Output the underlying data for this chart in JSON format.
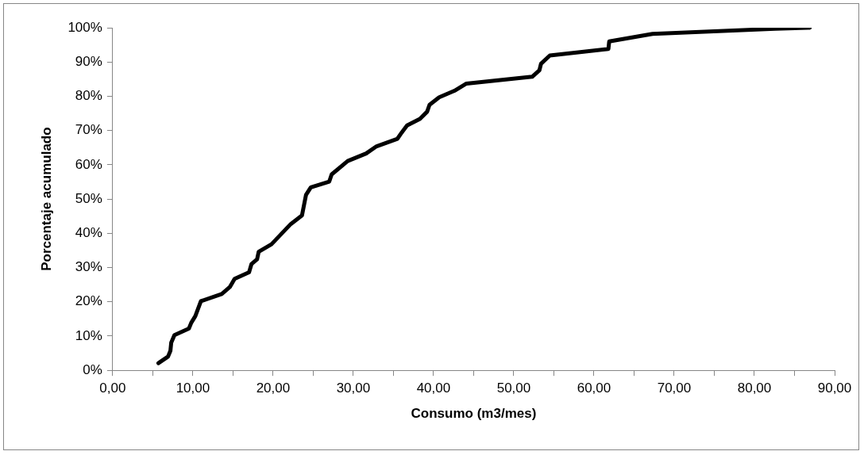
{
  "chart_data": {
    "type": "line",
    "xlabel": "Consumo (m3/mes)",
    "ylabel": "Porcentaje acumulado",
    "x": [
      5.7,
      6.9,
      7.2,
      7.3,
      7.7,
      9.5,
      9.8,
      10.3,
      11.0,
      13.6,
      14.6,
      15.2,
      17.0,
      17.3,
      18.0,
      18.2,
      19.8,
      22.2,
      23.6,
      24.1,
      24.7,
      27.0,
      27.3,
      29.3,
      31.6,
      32.9,
      35.5,
      36.0,
      36.7,
      38.3,
      39.2,
      39.5,
      40.7,
      42.6,
      44.1,
      52.3,
      53.2,
      53.4,
      54.5,
      61.8,
      61.9,
      67.3,
      82.6,
      86.9
    ],
    "series": [
      {
        "color": "#000000",
        "values": [
          2.1,
          4.0,
          5.7,
          8.1,
          10.3,
          12.2,
          13.9,
          15.8,
          20.2,
          22.3,
          24.3,
          26.7,
          28.6,
          31.0,
          32.4,
          34.6,
          36.8,
          42.7,
          45.2,
          51.2,
          53.4,
          55.1,
          57.2,
          61.1,
          63.3,
          65.4,
          67.6,
          69.3,
          71.5,
          73.4,
          75.5,
          77.5,
          79.7,
          81.6,
          83.7,
          85.7,
          87.6,
          89.5,
          91.9,
          93.8,
          96.0,
          98.2,
          99.7,
          100.0
        ]
      }
    ],
    "xlim": [
      0,
      90
    ],
    "xticks": [
      {
        "value": 0,
        "label": "0,00"
      },
      {
        "value": 5,
        "label": null
      },
      {
        "value": 10,
        "label": "10,00"
      },
      {
        "value": 15,
        "label": null
      },
      {
        "value": 20,
        "label": "20,00"
      },
      {
        "value": 25,
        "label": null
      },
      {
        "value": 30,
        "label": "30,00"
      },
      {
        "value": 35,
        "label": null
      },
      {
        "value": 40,
        "label": "40,00"
      },
      {
        "value": 45,
        "label": null
      },
      {
        "value": 50,
        "label": "50,00"
      },
      {
        "value": 55,
        "label": null
      },
      {
        "value": 60,
        "label": "60,00"
      },
      {
        "value": 65,
        "label": null
      },
      {
        "value": 70,
        "label": "70,00"
      },
      {
        "value": 75,
        "label": null
      },
      {
        "value": 80,
        "label": "80,00"
      },
      {
        "value": 85,
        "label": null
      },
      {
        "value": 90,
        "label": "90,00"
      }
    ],
    "ylim": [
      0,
      100
    ],
    "yticks": [
      {
        "value": 0,
        "label": "0%"
      },
      {
        "value": 10,
        "label": "10%"
      },
      {
        "value": 20,
        "label": "20%"
      },
      {
        "value": 30,
        "label": "30%"
      },
      {
        "value": 40,
        "label": "40%"
      },
      {
        "value": 50,
        "label": "50%"
      },
      {
        "value": 60,
        "label": "60%"
      },
      {
        "value": 70,
        "label": "70%"
      },
      {
        "value": 80,
        "label": "80%"
      },
      {
        "value": 90,
        "label": "90%"
      },
      {
        "value": 100,
        "label": "100%"
      }
    ],
    "grid": false,
    "legend": false,
    "marker": "none",
    "line_style": "solid"
  }
}
